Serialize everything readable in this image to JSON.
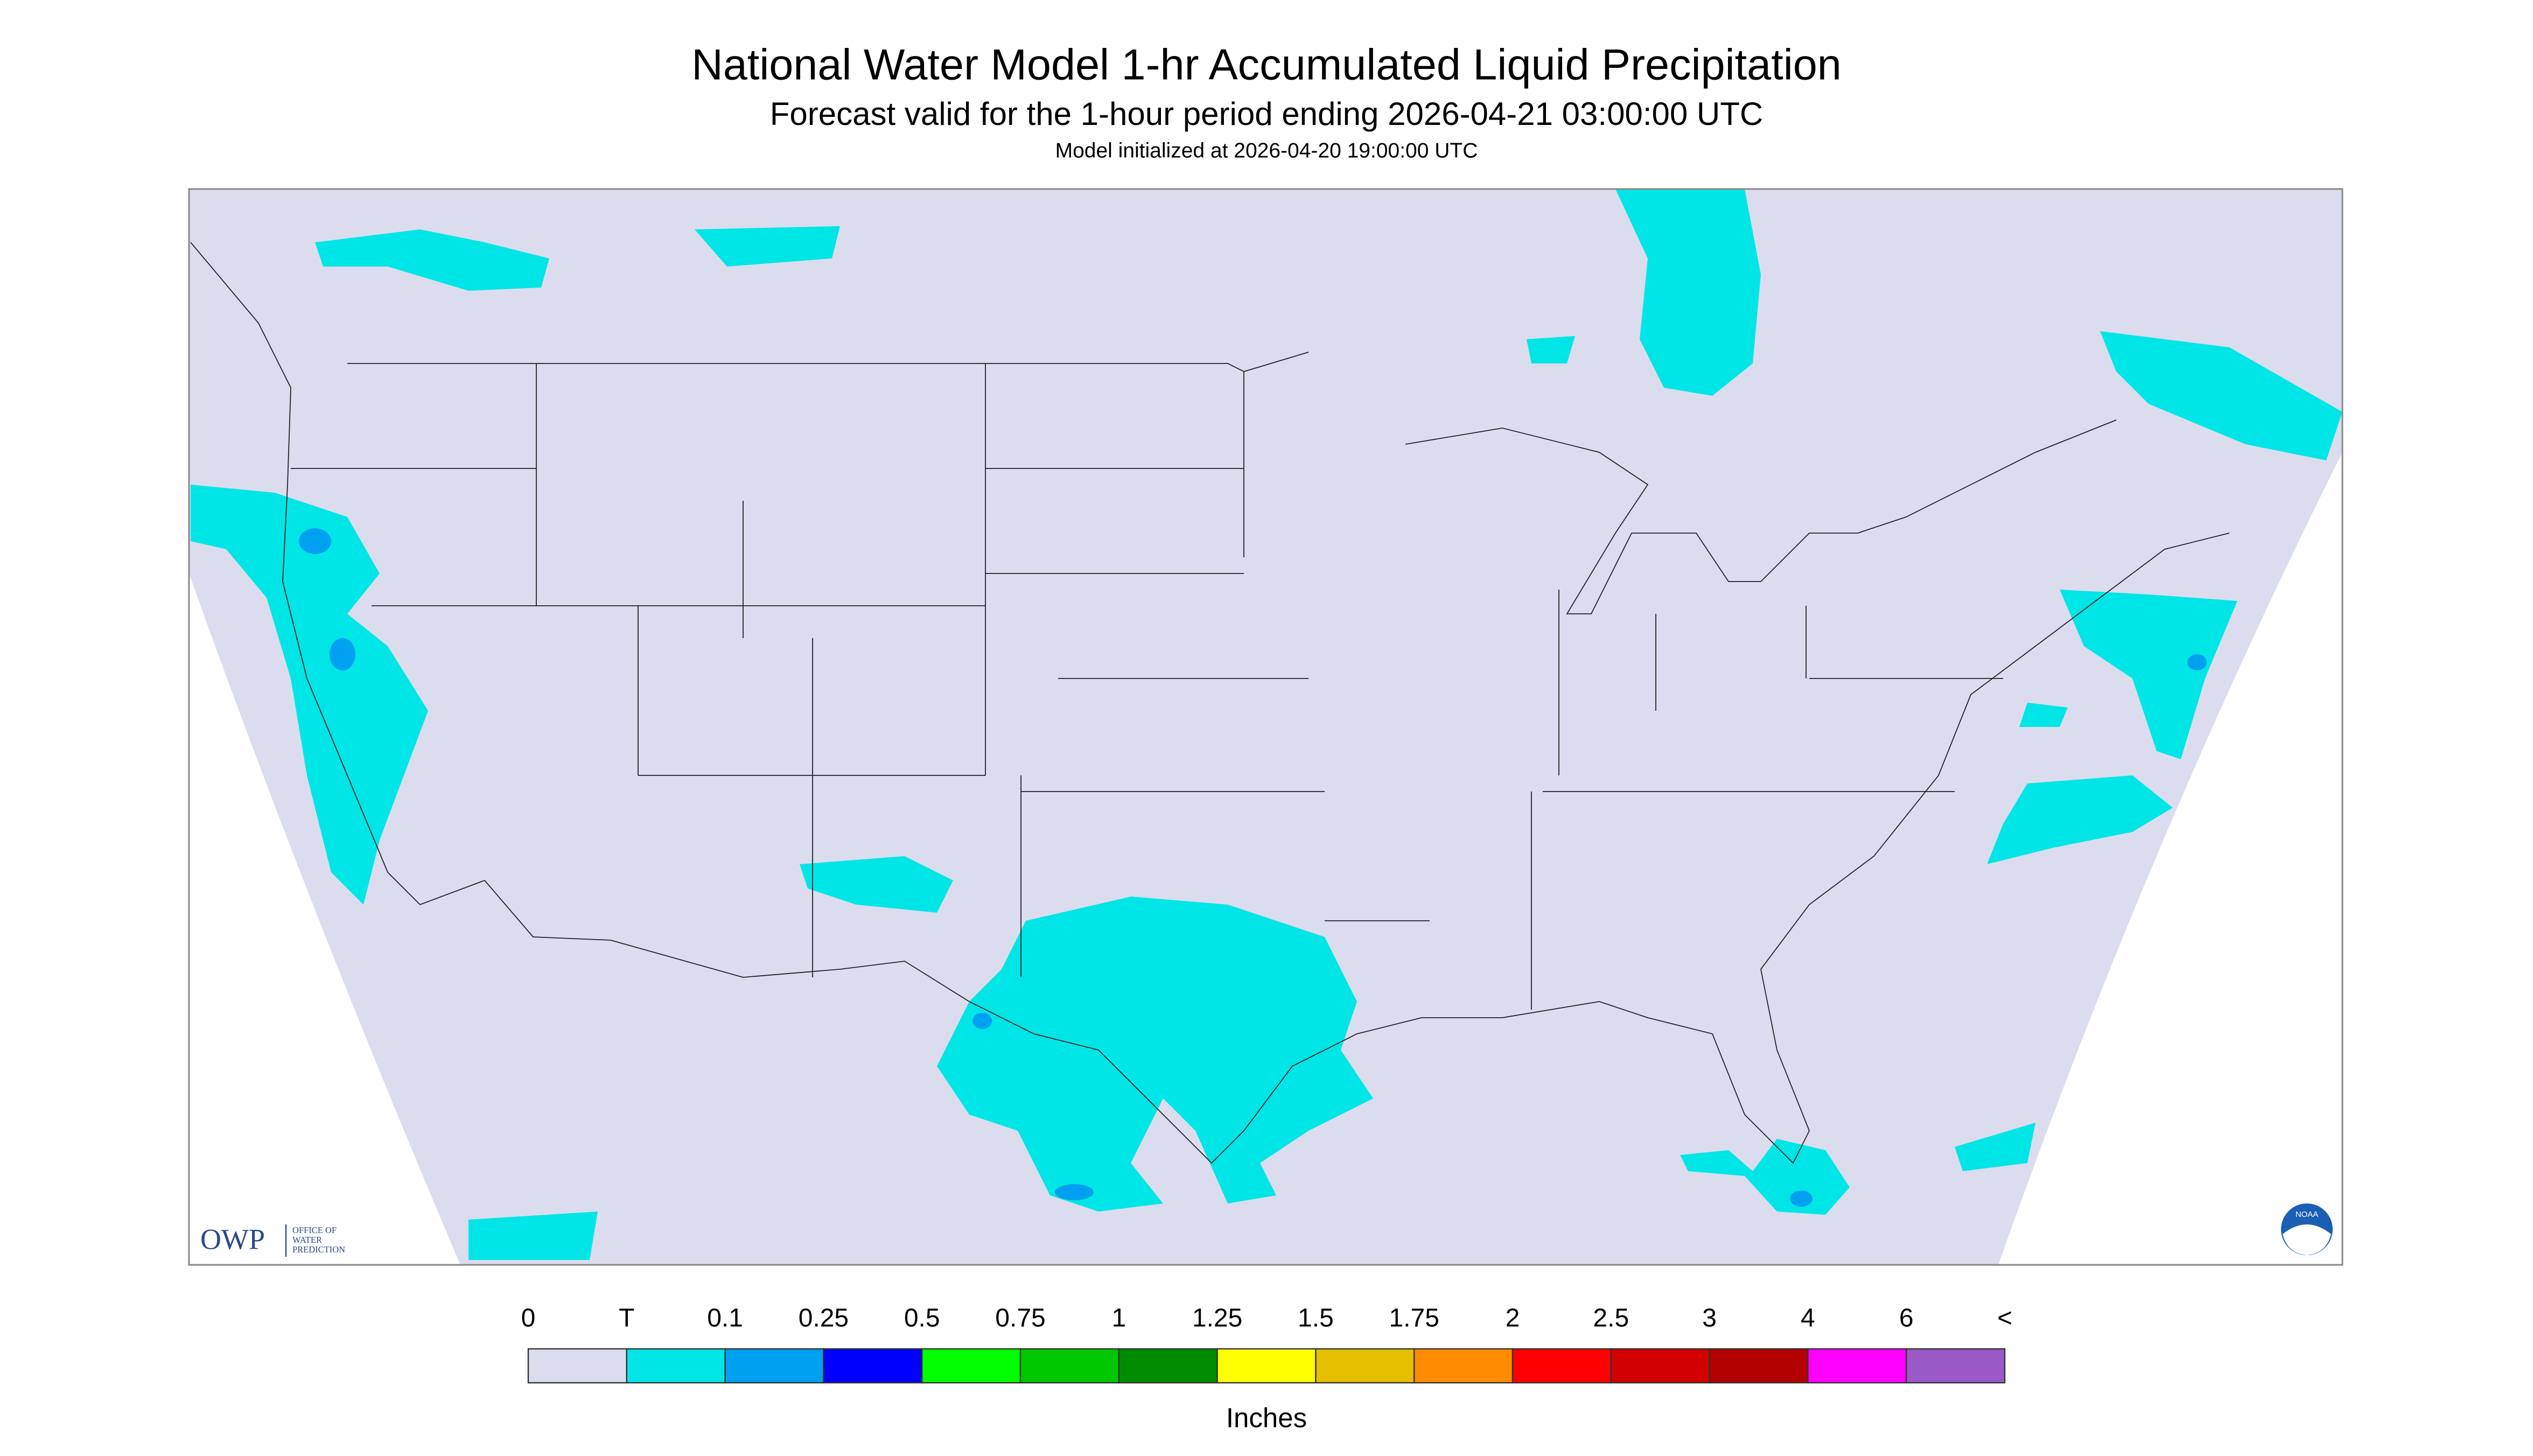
{
  "header": {
    "title": "National Water Model 1-hr Accumulated Liquid Precipitation",
    "subtitle": "Forecast valid for the 1-hour period ending 2026-04-21 03:00:00 UTC",
    "initialized": "Model initialized at 2026-04-20 19:00:00 UTC"
  },
  "legend": {
    "labels": [
      "0",
      "T",
      "0.1",
      "0.25",
      "0.5",
      "0.75",
      "1",
      "1.25",
      "1.5",
      "1.75",
      "2",
      "2.5",
      "3",
      "4",
      "6",
      "<"
    ],
    "colors": [
      "#dcdcef",
      "#00e6e6",
      "#00a0f0",
      "#0000ff",
      "#00ff00",
      "#00c800",
      "#008c00",
      "#ffff00",
      "#e6be00",
      "#ff8c00",
      "#ff0000",
      "#d20000",
      "#b40000",
      "#ff00ff",
      "#9b59c8"
    ],
    "unit": "Inches"
  },
  "logos": {
    "owp": "OWP",
    "owp_lines": [
      "OFFICE OF",
      "WATER",
      "PREDICTION"
    ],
    "noaa": "NOAA"
  }
}
